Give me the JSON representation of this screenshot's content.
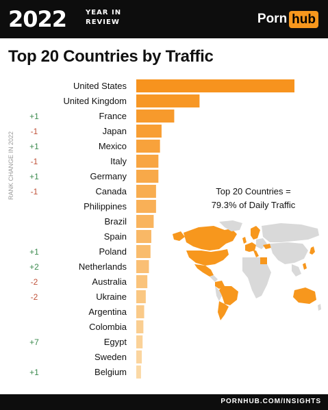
{
  "header": {
    "year": "2022",
    "year_in_review": [
      "YEAR IN",
      "REVIEW"
    ],
    "logo_left": "Porn",
    "logo_right": "hub"
  },
  "footer": {
    "text": "PORNHUB.COM/INSIGHTS"
  },
  "colors": {
    "bar_start": "#f7931e",
    "bar_end": "#fbd9a6",
    "up": "#3b8a4e",
    "down": "#c0523a",
    "map_land": "#d9d9d9",
    "map_highlight": "#f7971d"
  },
  "chart_data": {
    "type": "bar",
    "orientation": "horizontal",
    "title": "Top 20 Countries by Traffic",
    "ylabel": "RANK CHANGE IN 2022",
    "annotation": [
      "Top 20 Countries =",
      "79.3% of Daily Traffic"
    ],
    "categories": [
      "United States",
      "United Kingdom",
      "France",
      "Japan",
      "Mexico",
      "Italy",
      "Germany",
      "Canada",
      "Philippines",
      "Brazil",
      "Spain",
      "Poland",
      "Netherlands",
      "Australia",
      "Ukraine",
      "Argentina",
      "Colombia",
      "Egypt",
      "Sweden",
      "Belgium"
    ],
    "values": [
      100,
      40,
      24,
      16,
      15,
      14,
      14,
      12.5,
      12.5,
      11,
      9.5,
      9,
      8,
      7,
      6,
      5,
      4.5,
      4,
      3.5,
      3
    ],
    "value_unit": "relative traffic (United States = 100)",
    "rank_change": [
      "",
      "",
      "+1",
      "-1",
      "+1",
      "-1",
      "+1",
      "-1",
      "",
      "",
      "",
      "+1",
      "+2",
      "-2",
      "-2",
      "",
      "",
      "+7",
      "",
      "+1"
    ],
    "xlim": [
      0,
      100
    ],
    "grid": false,
    "legend": "none"
  }
}
